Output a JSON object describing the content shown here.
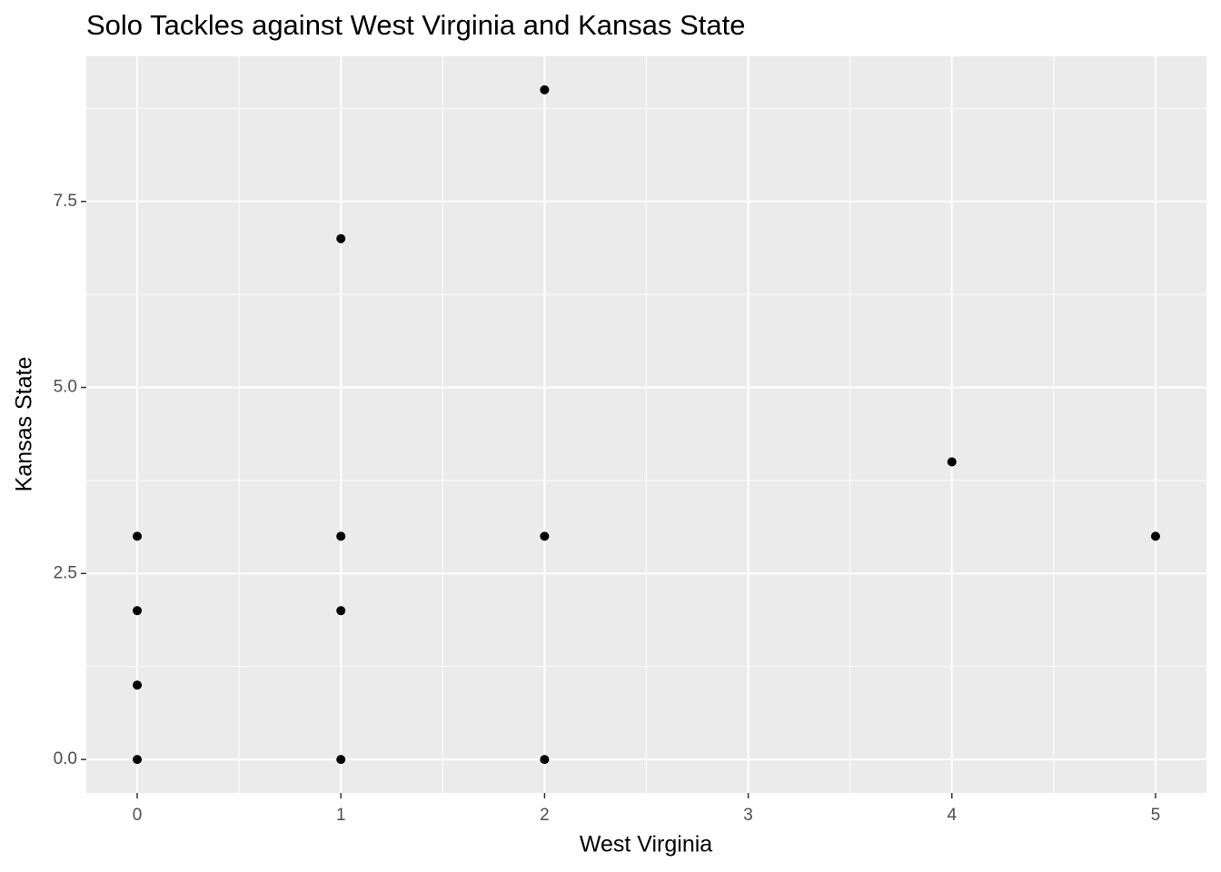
{
  "chart_data": {
    "type": "scatter",
    "title": "Solo Tackles against West Virginia and Kansas State",
    "x_label": "West Virginia",
    "y_label": "Kansas State",
    "series": [
      {
        "color": "#000000",
        "x": [
          0,
          0,
          0,
          0,
          1,
          1,
          1,
          1,
          2,
          2,
          2,
          4,
          5
        ],
        "values": [
          3,
          2,
          1,
          0,
          7,
          3,
          2,
          0,
          9,
          3,
          0,
          4,
          3
        ]
      }
    ],
    "xlim": [
      -0.25,
      5.25
    ],
    "xticks": [
      0,
      1,
      2,
      3,
      4,
      5
    ],
    "ylim": [
      -0.45,
      9.45
    ],
    "yticks": [
      {
        "value": 0,
        "label": "0.0"
      },
      2.5,
      {
        "value": 5,
        "label": "5.0"
      },
      7.5
    ],
    "grid": true,
    "minor_grid": true
  }
}
